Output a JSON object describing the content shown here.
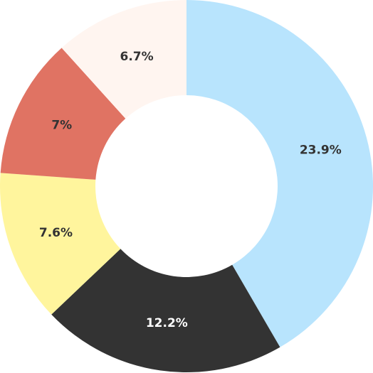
{
  "chart_data": {
    "type": "donut",
    "categories": [
      null,
      null,
      null,
      null,
      null
    ],
    "values": [
      23.9,
      12.2,
      7.6,
      7,
      6.7
    ],
    "value_labels": [
      "23.9%",
      "12.2%",
      "7.6%",
      "7%",
      "6.7%"
    ],
    "colors": [
      "#b8e4fd",
      "#333333",
      "#fff59d",
      "#e07363",
      "#fff5f0"
    ]
  }
}
